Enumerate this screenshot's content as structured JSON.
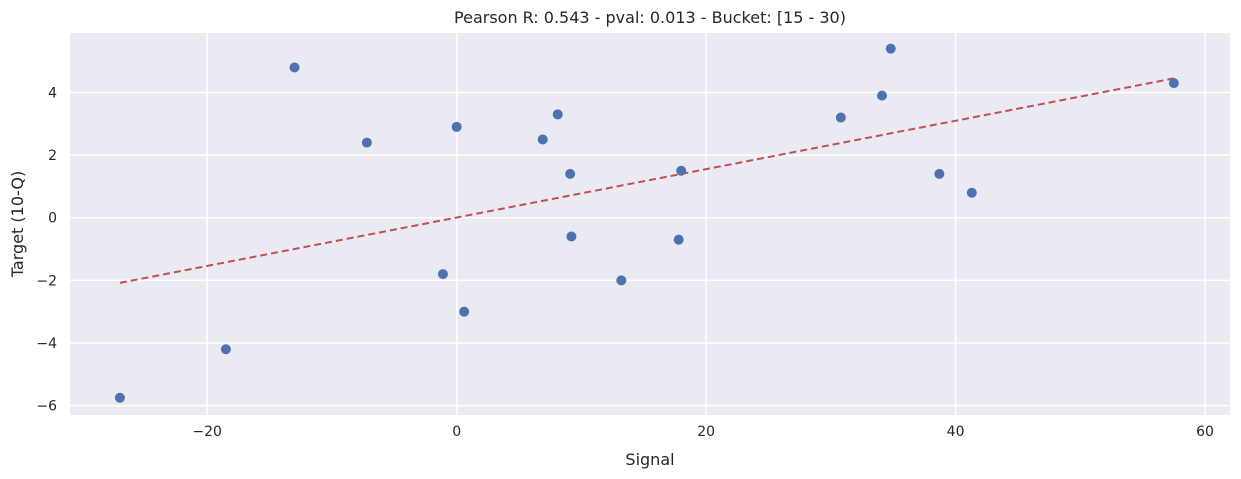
{
  "chart_data": {
    "type": "scatter",
    "title": "Pearson R: 0.543 - pval: 0.013 - Bucket: [15 - 30)",
    "xlabel": "Signal",
    "ylabel": "Target (10-Q)",
    "xlim": [
      -31,
      62
    ],
    "ylim": [
      -6.3,
      5.9
    ],
    "x_ticks": [
      -20,
      0,
      20,
      40,
      60
    ],
    "y_ticks": [
      -6,
      -4,
      -2,
      0,
      2,
      4
    ],
    "grid": true,
    "points": [
      {
        "x": -27.0,
        "y": -5.75
      },
      {
        "x": -18.5,
        "y": -4.2
      },
      {
        "x": -13.0,
        "y": 4.8
      },
      {
        "x": -7.2,
        "y": 2.4
      },
      {
        "x": -1.1,
        "y": -1.8
      },
      {
        "x": 0.0,
        "y": 2.9
      },
      {
        "x": 0.6,
        "y": -3.0
      },
      {
        "x": 6.9,
        "y": 2.5
      },
      {
        "x": 8.1,
        "y": 3.3
      },
      {
        "x": 9.1,
        "y": 1.4
      },
      {
        "x": 9.2,
        "y": -0.6
      },
      {
        "x": 13.2,
        "y": -2.0
      },
      {
        "x": 17.8,
        "y": -0.7
      },
      {
        "x": 18.0,
        "y": 1.5
      },
      {
        "x": 30.8,
        "y": 3.2
      },
      {
        "x": 34.1,
        "y": 3.9
      },
      {
        "x": 34.8,
        "y": 5.4
      },
      {
        "x": 38.7,
        "y": 1.4
      },
      {
        "x": 41.3,
        "y": 0.8
      },
      {
        "x": 57.5,
        "y": 4.3
      }
    ],
    "fit_line": {
      "x": [
        -27.0,
        57.5
      ],
      "y": [
        -2.08,
        4.45
      ]
    },
    "colors": {
      "points": "#4c72b0",
      "fit_line": "#c44e52",
      "plot_background": "#eaeaf2",
      "grid": "#ffffff"
    }
  }
}
